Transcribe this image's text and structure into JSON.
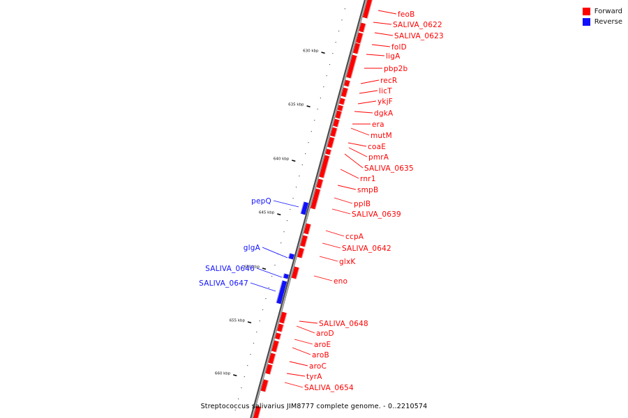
{
  "legend": [
    {
      "label": "Forward",
      "color": "#ff0000"
    },
    {
      "label": "Reverse",
      "color": "#1010ff"
    }
  ],
  "caption": "Streptococcus salivarius JIM8777 complete genome. - 0..2210574",
  "colors": {
    "forward": "#ff0000",
    "reverse": "#1010ff",
    "backbone": "#8a8a8a"
  },
  "scale": {
    "unit": "kbp",
    "ticks": [
      630,
      635,
      640,
      645,
      650,
      655,
      660
    ]
  },
  "genes": {
    "forward": [
      {
        "name": "feoB"
      },
      {
        "name": "SALIVA_0622"
      },
      {
        "name": "SALIVA_0623"
      },
      {
        "name": "folD"
      },
      {
        "name": "ligA"
      },
      {
        "name": "pbp2b"
      },
      {
        "name": "recR"
      },
      {
        "name": "licT"
      },
      {
        "name": "ykjF"
      },
      {
        "name": "dgkA"
      },
      {
        "name": "era"
      },
      {
        "name": "mutM"
      },
      {
        "name": "coaE"
      },
      {
        "name": "pmrA"
      },
      {
        "name": "SALIVA_0635"
      },
      {
        "name": "rnr1"
      },
      {
        "name": "smpB"
      },
      {
        "name": "pplB"
      },
      {
        "name": "SALIVA_0639"
      },
      {
        "name": "ccpA"
      },
      {
        "name": "SALIVA_0642"
      },
      {
        "name": "glxK"
      },
      {
        "name": "eno"
      },
      {
        "name": "SALIVA_0648"
      },
      {
        "name": "aroD"
      },
      {
        "name": "aroE"
      },
      {
        "name": "aroB"
      },
      {
        "name": "aroC"
      },
      {
        "name": "tyrA"
      },
      {
        "name": "SALIVA_0654"
      }
    ],
    "reverse": [
      {
        "name": "pepQ"
      },
      {
        "name": "glgA"
      },
      {
        "name": "SALIVA_0646"
      },
      {
        "name": "SALIVA_0647"
      }
    ]
  }
}
